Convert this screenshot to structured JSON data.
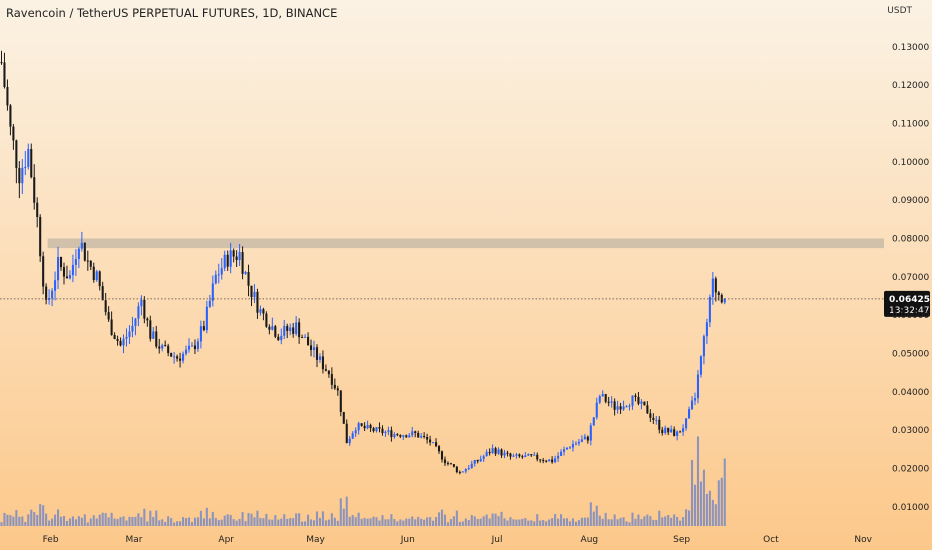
{
  "header": {
    "title": "Ravencoin / TetherUS PERPETUAL FUTURES, 1D, BINANCE"
  },
  "chart_data": {
    "type": "candlestick",
    "quote_currency": "USDT",
    "y_axis": {
      "unit_label": "USDT",
      "range": [
        0.005,
        0.137
      ],
      "ticks": [
        0.01,
        0.02,
        0.03,
        0.04,
        0.05,
        0.06,
        0.07,
        0.08,
        0.09,
        0.1,
        0.11,
        0.12,
        0.13
      ],
      "tick_labels": [
        "0.01000",
        "0.02000",
        "0.03000",
        "0.04000",
        "0.05000",
        "0.06000",
        "0.07000",
        "0.08000",
        "0.09000",
        "0.10000",
        "0.11000",
        "0.12000",
        "0.13000"
      ]
    },
    "x_axis": {
      "range": [
        "2022-01-15",
        "2022-11-08"
      ],
      "ticks": [
        {
          "date": "2022-02-01",
          "label": "Feb"
        },
        {
          "date": "2022-03-01",
          "label": "Mar"
        },
        {
          "date": "2022-04-01",
          "label": "Apr"
        },
        {
          "date": "2022-05-01",
          "label": "May"
        },
        {
          "date": "2022-06-01",
          "label": "Jun"
        },
        {
          "date": "2022-07-01",
          "label": "Jul"
        },
        {
          "date": "2022-08-01",
          "label": "Aug"
        },
        {
          "date": "2022-09-01",
          "label": "Sep"
        },
        {
          "date": "2022-10-01",
          "label": "Oct"
        },
        {
          "date": "2022-11-01",
          "label": "Nov"
        }
      ]
    },
    "price_path": [
      [
        "2022-01-15",
        0.126
      ],
      [
        "2022-01-18",
        0.108
      ],
      [
        "2022-01-21",
        0.097
      ],
      [
        "2022-01-24",
        0.103
      ],
      [
        "2022-01-27",
        0.085
      ],
      [
        "2022-01-30",
        0.062
      ],
      [
        "2022-02-03",
        0.073
      ],
      [
        "2022-02-07",
        0.07
      ],
      [
        "2022-02-10",
        0.08
      ],
      [
        "2022-02-13",
        0.074
      ],
      [
        "2022-02-16",
        0.07
      ],
      [
        "2022-02-20",
        0.058
      ],
      [
        "2022-02-24",
        0.052
      ],
      [
        "2022-02-28",
        0.057
      ],
      [
        "2022-03-03",
        0.064
      ],
      [
        "2022-03-06",
        0.055
      ],
      [
        "2022-03-10",
        0.051
      ],
      [
        "2022-03-15",
        0.049
      ],
      [
        "2022-03-20",
        0.051
      ],
      [
        "2022-03-24",
        0.057
      ],
      [
        "2022-03-28",
        0.07
      ],
      [
        "2022-04-01",
        0.075
      ],
      [
        "2022-04-05",
        0.076
      ],
      [
        "2022-04-08",
        0.068
      ],
      [
        "2022-04-12",
        0.061
      ],
      [
        "2022-04-18",
        0.055
      ],
      [
        "2022-04-24",
        0.057
      ],
      [
        "2022-04-30",
        0.05
      ],
      [
        "2022-05-05",
        0.045
      ],
      [
        "2022-05-08",
        0.04
      ],
      [
        "2022-05-11",
        0.027
      ],
      [
        "2022-05-14",
        0.031
      ],
      [
        "2022-05-20",
        0.03
      ],
      [
        "2022-05-27",
        0.029
      ],
      [
        "2022-06-03",
        0.029
      ],
      [
        "2022-06-08",
        0.027
      ],
      [
        "2022-06-13",
        0.022
      ],
      [
        "2022-06-18",
        0.019
      ],
      [
        "2022-06-24",
        0.022
      ],
      [
        "2022-06-29",
        0.025
      ],
      [
        "2022-07-05",
        0.023
      ],
      [
        "2022-07-12",
        0.023
      ],
      [
        "2022-07-19",
        0.022
      ],
      [
        "2022-07-25",
        0.026
      ],
      [
        "2022-07-31",
        0.028
      ],
      [
        "2022-08-04",
        0.039
      ],
      [
        "2022-08-09",
        0.036
      ],
      [
        "2022-08-15",
        0.038
      ],
      [
        "2022-08-20",
        0.035
      ],
      [
        "2022-08-25",
        0.03
      ],
      [
        "2022-08-30",
        0.029
      ],
      [
        "2022-09-02",
        0.032
      ],
      [
        "2022-09-05",
        0.039
      ],
      [
        "2022-09-08",
        0.053
      ],
      [
        "2022-09-11",
        0.068
      ],
      [
        "2022-09-13",
        0.066
      ],
      [
        "2022-09-15",
        0.0643
      ]
    ],
    "resistance_zone": {
      "low": 0.0775,
      "high": 0.08,
      "from": "2022-01-31",
      "to": "2022-11-08"
    },
    "last_price": {
      "value": 0.06425,
      "label": "0.06425",
      "countdown": "13:32:47"
    },
    "colors": {
      "bull": "#2962ff",
      "bear": "#1a1a1a",
      "volume": "#6f86c8",
      "zone": "#c9bba7",
      "last_price": "#111111",
      "grid": "none"
    },
    "background_gradient": [
      "#fbf2e4",
      "#fcc88a"
    ]
  }
}
